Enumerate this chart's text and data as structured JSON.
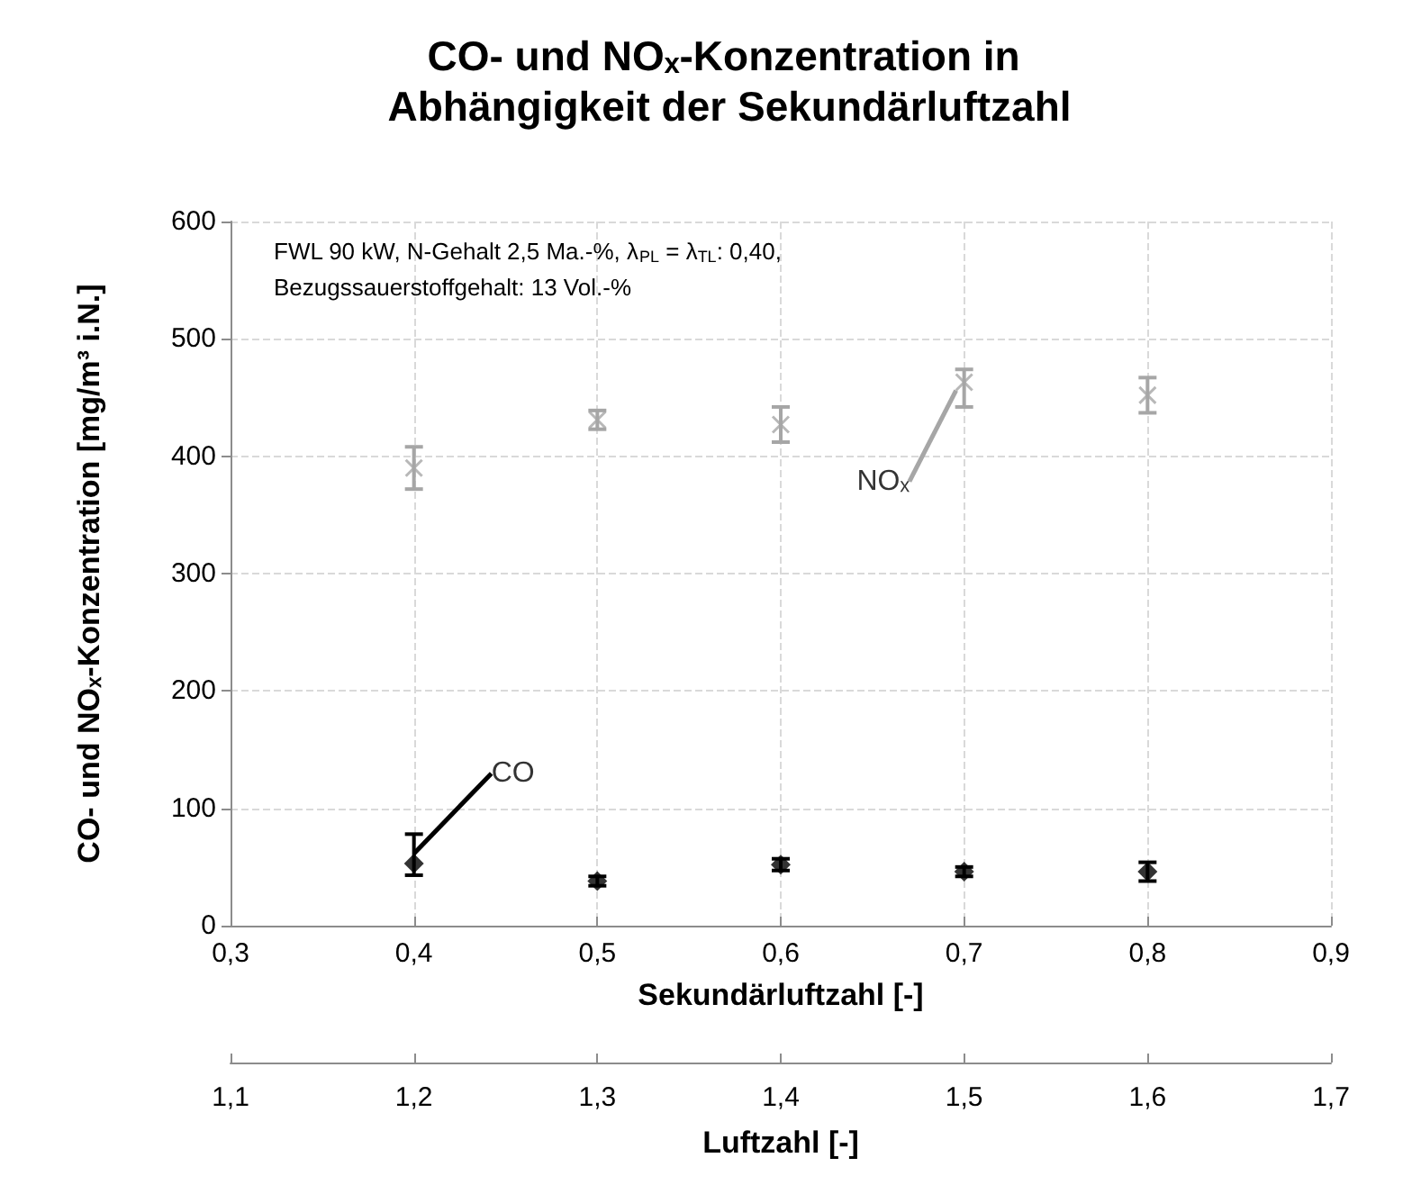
{
  "chart_data": {
    "type": "scatter",
    "title": "CO- und NOₓ-Konzentration in Abhängigkeit der Sekundärluftzahl",
    "xlabel": "Sekundärluftzahl [-]",
    "ylabel": "CO- und NOₓ-Konzentration [mg/m³ i.N.]",
    "x2label": "Luftzahl [-]",
    "annotations": [
      "FWL 90 kW, N-Gehalt 2,5 Ma.-%, λ$_{PL}$ = λ$_{TL}$: 0,40,",
      "Bezugssauerstoffgehalt: 13 Vol.-%"
    ],
    "x": [
      0.4,
      0.5,
      0.6,
      0.7,
      0.8
    ],
    "series": [
      {
        "name": "NOₓ",
        "color": "#a6a6a6",
        "marker": "cross",
        "values": [
          390,
          431,
          427,
          463,
          452
        ],
        "errors": [
          18,
          8,
          15,
          [
            442,
            474
          ],
          15
        ]
      },
      {
        "name": "CO",
        "color": "#000000",
        "marker": "diamond",
        "values": [
          53,
          38,
          52,
          46,
          46
        ],
        "errors": [
          [
            43,
            78
          ],
          4,
          5,
          4,
          8
        ]
      }
    ],
    "xlim": [
      0.3,
      0.9
    ],
    "xticks": [
      {
        "value": 0.3,
        "label": "0,3"
      },
      {
        "value": 0.4,
        "label": "0,4"
      },
      {
        "value": 0.5,
        "label": "0,5"
      },
      {
        "value": 0.6,
        "label": "0,6"
      },
      {
        "value": 0.7,
        "label": "0,7"
      },
      {
        "value": 0.8,
        "label": "0,8"
      },
      {
        "value": 0.9,
        "label": "0,9"
      }
    ],
    "x2lim": [
      1.1,
      1.7
    ],
    "x2ticks": [
      {
        "value": 1.1,
        "label": "1,1"
      },
      {
        "value": 1.2,
        "label": "1,2"
      },
      {
        "value": 1.3,
        "label": "1,3"
      },
      {
        "value": 1.4,
        "label": "1,4"
      },
      {
        "value": 1.5,
        "label": "1,5"
      },
      {
        "value": 1.6,
        "label": "1,6"
      },
      {
        "value": 1.7,
        "label": "1,7"
      }
    ],
    "ylim": [
      0,
      600
    ],
    "yticks": [
      0,
      100,
      200,
      300,
      400,
      500,
      600
    ],
    "grid": true
  }
}
